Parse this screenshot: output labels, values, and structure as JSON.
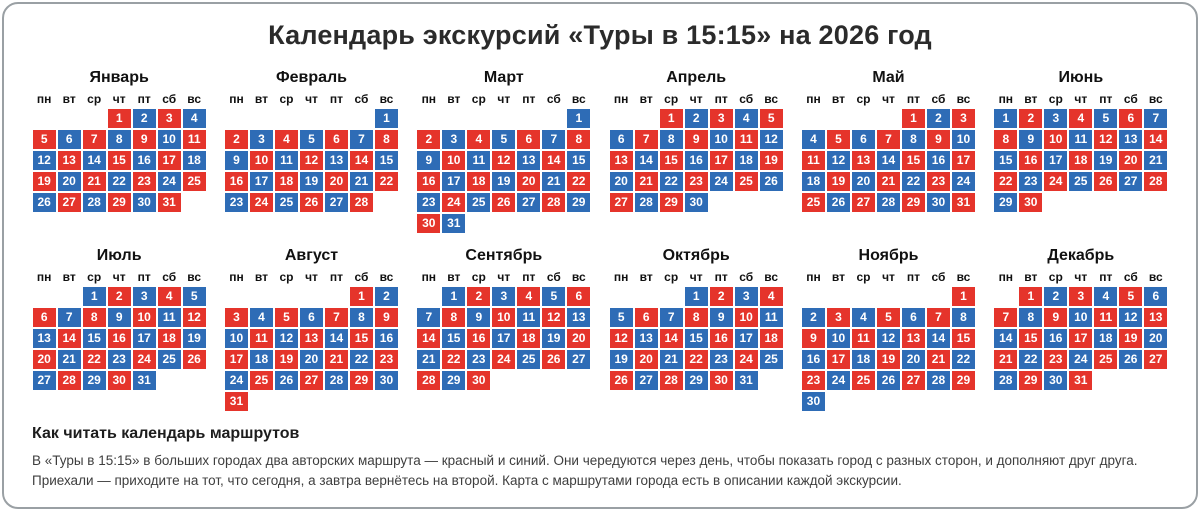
{
  "page": {
    "title": "Календарь экскурсий «Туры в 15:15» на 2026 год",
    "legend_heading": "Как читать календарь маршрутов",
    "legend_text": "В «Туры в 15:15» в больших городах два авторских маршрута — красный и синий. Они чередуются через день, чтобы показать город с разных сторон, и дополняют друг друга. Приехали — приходите на тот, что сегодня, а завтра вернётесь на второй. Карта с маршрутами города есть в описании каждой экскурсии."
  },
  "colors": {
    "red": "#e5342b",
    "blue": "#2e6cb6"
  },
  "weekdays": [
    "пн",
    "вт",
    "ср",
    "чт",
    "пт",
    "сб",
    "вс"
  ],
  "months": [
    {
      "name": "Январь",
      "days": 31,
      "start": 3,
      "first_color": "red"
    },
    {
      "name": "Февраль",
      "days": 28,
      "start": 6,
      "first_color": "blue"
    },
    {
      "name": "Март",
      "days": 31,
      "start": 6,
      "first_color": "blue"
    },
    {
      "name": "Апрель",
      "days": 30,
      "start": 2,
      "first_color": "red"
    },
    {
      "name": "Май",
      "days": 31,
      "start": 4,
      "first_color": "red"
    },
    {
      "name": "Июнь",
      "days": 30,
      "start": 0,
      "first_color": "blue"
    },
    {
      "name": "Июль",
      "days": 31,
      "start": 2,
      "first_color": "blue"
    },
    {
      "name": "Август",
      "days": 31,
      "start": 5,
      "first_color": "red"
    },
    {
      "name": "Сентябрь",
      "days": 30,
      "start": 1,
      "first_color": "blue"
    },
    {
      "name": "Октябрь",
      "days": 31,
      "start": 3,
      "first_color": "blue"
    },
    {
      "name": "Ноябрь",
      "days": 30,
      "start": 6,
      "first_color": "red"
    },
    {
      "name": "Декабрь",
      "days": 31,
      "start": 1,
      "first_color": "red"
    }
  ]
}
